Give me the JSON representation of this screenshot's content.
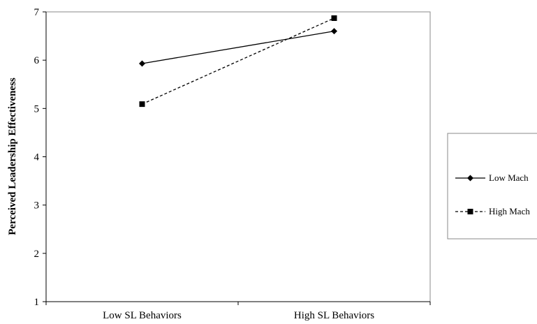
{
  "chart_data": {
    "type": "line",
    "title": "",
    "xlabel": "",
    "ylabel": "Perceived Leadership Effectiveness",
    "categories": [
      "Low SL Behaviors",
      "High SL Behaviors"
    ],
    "ylim": [
      1,
      7
    ],
    "yticks": [
      1,
      2,
      3,
      4,
      5,
      6,
      7
    ],
    "grid": false,
    "legend_position": "right",
    "series": [
      {
        "name": "Low Mach",
        "values": [
          5.93,
          6.6
        ],
        "line": "solid",
        "marker": "diamond",
        "color": "#000000"
      },
      {
        "name": "High Mach",
        "values": [
          5.09,
          6.87
        ],
        "line": "dashed",
        "marker": "square",
        "color": "#000000"
      }
    ]
  }
}
